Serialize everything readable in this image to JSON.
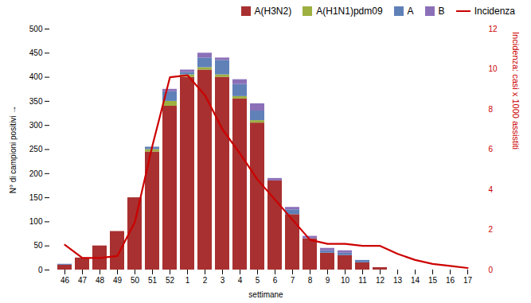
{
  "chart_data": {
    "type": "bar",
    "stacked": true,
    "categories": [
      "46",
      "47",
      "48",
      "49",
      "50",
      "51",
      "52",
      "1",
      "2",
      "3",
      "4",
      "5",
      "6",
      "7",
      "8",
      "9",
      "10",
      "11",
      "12",
      "13",
      "14",
      "15",
      "16",
      "17"
    ],
    "series": [
      {
        "name": "A(H3N2)",
        "color": "#a83030",
        "values": [
          10,
          25,
          50,
          80,
          150,
          245,
          340,
          400,
          415,
          400,
          355,
          305,
          185,
          115,
          65,
          35,
          30,
          15,
          5,
          0,
          0,
          0,
          0,
          0
        ]
      },
      {
        "name": "A(H1N1)pdm09",
        "color": "#9db040",
        "values": [
          0,
          0,
          0,
          0,
          0,
          5,
          10,
          5,
          5,
          5,
          5,
          5,
          0,
          0,
          0,
          0,
          0,
          0,
          0,
          0,
          0,
          0,
          0,
          0
        ]
      },
      {
        "name": "A",
        "color": "#6080b8",
        "values": [
          2,
          0,
          0,
          0,
          0,
          5,
          20,
          5,
          20,
          30,
          25,
          20,
          0,
          10,
          0,
          5,
          5,
          5,
          0,
          0,
          0,
          0,
          0,
          0
        ]
      },
      {
        "name": "B",
        "color": "#8b70b8",
        "values": [
          0,
          0,
          0,
          0,
          0,
          0,
          5,
          5,
          10,
          5,
          10,
          15,
          5,
          5,
          5,
          5,
          5,
          0,
          0,
          0,
          0,
          0,
          0,
          0
        ]
      },
      {
        "name": "Incidenza",
        "type": "line",
        "axis": "y2",
        "color": "#cc0000",
        "values": [
          1.25,
          0.6,
          0.6,
          0.7,
          2.4,
          6.2,
          9.6,
          9.7,
          8.7,
          7.0,
          5.8,
          4.5,
          3.5,
          2.5,
          1.5,
          1.3,
          1.3,
          1.2,
          1.2,
          0.8,
          0.5,
          0.3,
          0.2,
          0.1
        ]
      }
    ],
    "xlabel": "settimane",
    "ylabel": "N° di campioni positivi",
    "y2label": "Incidenza: casi x 1000 assistiti",
    "ylim": [
      0,
      500
    ],
    "yticks": [
      0,
      50,
      100,
      150,
      200,
      250,
      300,
      350,
      400,
      450,
      500
    ],
    "y2lim": [
      0,
      12
    ],
    "y2ticks": [
      0,
      2,
      4,
      6,
      8,
      10,
      12
    ],
    "legend": "upper right",
    "grid": false
  }
}
